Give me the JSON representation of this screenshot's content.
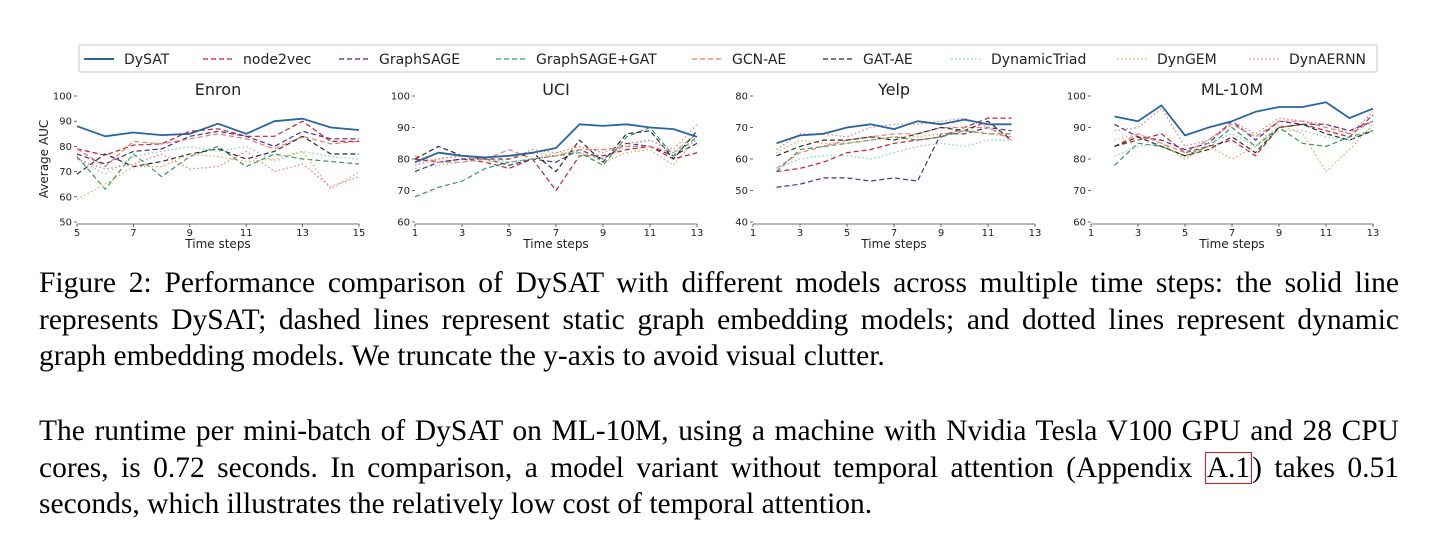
{
  "legend": [
    {
      "name": "DySAT",
      "color": "#2466a6",
      "style": "solid"
    },
    {
      "name": "node2vec",
      "color": "#c81e2e",
      "style": "dashed"
    },
    {
      "name": "GraphSAGE",
      "color": "#4b2a8c",
      "style": "dashed"
    },
    {
      "name": "GraphSAGE+GAT",
      "color": "#2e9a5a",
      "style": "dashed"
    },
    {
      "name": "GCN-AE",
      "color": "#f07a6a",
      "style": "dashed"
    },
    {
      "name": "GAT-AE",
      "color": "#2b2b2b",
      "style": "dashed"
    },
    {
      "name": "DynamicTriad",
      "color": "#7fd1b0",
      "style": "dotted"
    },
    {
      "name": "DynGEM",
      "color": "#f5a14a",
      "style": "dotted"
    },
    {
      "name": "DynAERNN",
      "color": "#e87a7a",
      "style": "dotted"
    }
  ],
  "chart_data": [
    {
      "type": "line",
      "title": "Enron",
      "xlabel": "Time steps",
      "ylabel": "Average AUC",
      "xlim": [
        5,
        15
      ],
      "ylim": [
        50,
        100
      ],
      "xticks": [
        "5",
        "7",
        "9",
        "11",
        "13",
        "15"
      ],
      "yticks": [
        "50",
        "60",
        "70",
        "80",
        "90",
        "100"
      ],
      "x": [
        5,
        6,
        7,
        8,
        9,
        10,
        11,
        12,
        13,
        14,
        15
      ],
      "series": [
        {
          "name": "DySAT",
          "values": [
            88,
            84,
            85.5,
            84.5,
            85,
            89,
            85,
            90,
            91,
            87.5,
            86.5
          ]
        },
        {
          "name": "node2vec",
          "values": [
            79,
            76.5,
            80.5,
            81,
            86,
            87,
            84,
            84,
            90,
            82,
            82
          ]
        },
        {
          "name": "GraphSAGE",
          "values": [
            77,
            73,
            78,
            79,
            84,
            86,
            84,
            80,
            86,
            83,
            83
          ]
        },
        {
          "name": "GraphSAGE+GAT",
          "values": [
            76,
            63,
            77,
            68,
            76,
            80,
            72,
            77,
            75,
            74,
            73
          ]
        },
        {
          "name": "GCN-AE",
          "values": [
            79,
            72,
            82,
            81,
            83,
            85,
            83,
            79,
            84,
            81,
            82
          ]
        },
        {
          "name": "GAT-AE",
          "values": [
            69,
            77,
            72,
            74,
            77,
            79,
            75,
            78,
            84,
            77,
            77
          ]
        },
        {
          "name": "DynamicTriad",
          "values": [
            75,
            69,
            76,
            78,
            80,
            78,
            80,
            74,
            78,
            76,
            75
          ]
        },
        {
          "name": "DynGEM",
          "values": [
            59,
            65,
            72,
            72,
            77,
            76,
            74,
            75,
            78,
            63,
            70
          ]
        },
        {
          "name": "DynAERNN",
          "values": [
            75,
            71,
            73,
            77,
            71,
            72,
            78,
            70,
            73,
            64,
            68
          ]
        }
      ]
    },
    {
      "type": "line",
      "title": "UCI",
      "xlabel": "Time steps",
      "ylabel": "",
      "xlim": [
        1,
        13
      ],
      "ylim": [
        60,
        100
      ],
      "xticks": [
        "1",
        "3",
        "5",
        "7",
        "9",
        "11",
        "13"
      ],
      "yticks": [
        "60",
        "70",
        "80",
        "90",
        "100"
      ],
      "x": [
        1,
        2,
        3,
        4,
        5,
        6,
        7,
        8,
        9,
        10,
        11,
        12,
        13
      ],
      "series": [
        {
          "name": "DySAT",
          "values": [
            79,
            82,
            81,
            80.5,
            81,
            82,
            83.5,
            91,
            90.5,
            91,
            90,
            89.5,
            87
          ]
        },
        {
          "name": "node2vec",
          "values": [
            80,
            79,
            80,
            79,
            77,
            80,
            70,
            81,
            81,
            83,
            84,
            80,
            82
          ]
        },
        {
          "name": "GraphSAGE",
          "values": [
            76,
            79,
            80,
            80,
            78,
            80,
            79,
            83,
            80,
            85,
            84,
            81,
            85
          ]
        },
        {
          "name": "GraphSAGE+GAT",
          "values": [
            68,
            71,
            73,
            77,
            79,
            80,
            81,
            82,
            78,
            87,
            90,
            81,
            87
          ]
        },
        {
          "name": "GCN-AE",
          "values": [
            81,
            79,
            79,
            80,
            83,
            80,
            81,
            83,
            83,
            84,
            84,
            82,
            88
          ]
        },
        {
          "name": "GAT-AE",
          "values": [
            80,
            84,
            81,
            80,
            80,
            82,
            76,
            86,
            79,
            88,
            89,
            80,
            89
          ]
        },
        {
          "name": "DynamicTriad",
          "values": [
            77,
            78,
            79,
            80,
            79,
            80,
            82,
            82,
            80,
            84,
            86,
            82,
            86
          ]
        },
        {
          "name": "DynGEM",
          "values": [
            79,
            80,
            81,
            79,
            80,
            82,
            81,
            83,
            79,
            82,
            83,
            78,
            87
          ]
        },
        {
          "name": "DynAERNN",
          "values": [
            78,
            80,
            81,
            80,
            80,
            83,
            82,
            84,
            82,
            85,
            86,
            83,
            91
          ]
        }
      ]
    },
    {
      "type": "line",
      "title": "Yelp",
      "xlabel": "Time steps",
      "ylabel": "",
      "xlim": [
        1,
        13
      ],
      "ylim": [
        40,
        80
      ],
      "xticks": [
        "1",
        "3",
        "5",
        "7",
        "9",
        "11",
        "13"
      ],
      "yticks": [
        "40",
        "50",
        "60",
        "70",
        "80"
      ],
      "x": [
        2,
        3,
        4,
        5,
        6,
        7,
        8,
        9,
        10,
        11,
        12
      ],
      "series": [
        {
          "name": "DySAT",
          "values": [
            65,
            67.5,
            68,
            70,
            71,
            69.5,
            72,
            71,
            72.5,
            71,
            71
          ]
        },
        {
          "name": "node2vec",
          "values": [
            56,
            57,
            59,
            62,
            63,
            65,
            66,
            67,
            70,
            73,
            73
          ]
        },
        {
          "name": "GraphSAGE",
          "values": [
            51,
            52,
            54,
            54,
            53,
            54,
            53,
            68,
            68,
            70,
            69
          ]
        },
        {
          "name": "GraphSAGE+GAT",
          "values": [
            56,
            63,
            64,
            65,
            66,
            67,
            66,
            67,
            69,
            68,
            68
          ]
        },
        {
          "name": "GCN-AE",
          "values": [
            57,
            62,
            64,
            66,
            67,
            68,
            68,
            70,
            70,
            70,
            66
          ]
        },
        {
          "name": "GAT-AE",
          "values": [
            61,
            64,
            66,
            66,
            67,
            66,
            68,
            70,
            69,
            72,
            66
          ]
        },
        {
          "name": "DynamicTriad",
          "values": [
            57,
            60,
            61,
            61,
            60,
            62,
            64,
            65,
            64,
            66,
            66
          ]
        },
        {
          "name": "DynGEM",
          "values": [
            62,
            66,
            65,
            65,
            66,
            67,
            67,
            68,
            69,
            68,
            67
          ]
        },
        {
          "name": "DynAERNN",
          "values": [
            63,
            68,
            68,
            67,
            70,
            71,
            71,
            72,
            73,
            70,
            67
          ]
        }
      ]
    },
    {
      "type": "line",
      "title": "ML-10M",
      "xlabel": "Time steps",
      "ylabel": "",
      "xlim": [
        1,
        13
      ],
      "ylim": [
        60,
        100
      ],
      "xticks": [
        "1",
        "3",
        "5",
        "7",
        "9",
        "11",
        "13"
      ],
      "yticks": [
        "60",
        "70",
        "80",
        "90",
        "100"
      ],
      "x": [
        2,
        3,
        4,
        5,
        6,
        7,
        8,
        9,
        10,
        11,
        12,
        13
      ],
      "series": [
        {
          "name": "DySAT",
          "values": [
            93.5,
            92,
            97,
            87.5,
            90,
            92,
            95,
            96.5,
            96.5,
            98,
            93,
            96
          ]
        },
        {
          "name": "node2vec",
          "values": [
            84,
            86,
            88,
            82,
            84,
            86,
            81,
            90,
            91,
            89,
            87,
            94
          ]
        },
        {
          "name": "GraphSAGE",
          "values": [
            91,
            87,
            86,
            83,
            85,
            92,
            86,
            92,
            91,
            91,
            89,
            92
          ]
        },
        {
          "name": "GraphSAGE+GAT",
          "values": [
            78,
            85,
            84,
            81,
            84,
            90,
            84,
            90,
            85,
            84,
            87,
            89
          ]
        },
        {
          "name": "GCN-AE",
          "values": [
            84,
            88,
            85,
            82,
            86,
            91,
            87,
            92,
            92,
            90,
            88,
            92
          ]
        },
        {
          "name": "GAT-AE",
          "values": [
            84,
            87,
            84,
            81,
            83,
            87,
            82,
            90,
            91,
            88,
            86,
            89
          ]
        },
        {
          "name": "DynamicTriad",
          "values": [
            81,
            84,
            85,
            80,
            85,
            88,
            84,
            89,
            89,
            87,
            86,
            90
          ]
        },
        {
          "name": "DynGEM",
          "values": [
            86,
            88,
            85,
            80,
            84,
            80,
            84,
            91,
            88,
            76,
            83,
            91
          ]
        },
        {
          "name": "DynAERNN",
          "values": [
            89,
            90,
            96,
            84,
            86,
            92,
            88,
            93,
            92,
            91,
            88,
            95
          ]
        }
      ]
    }
  ],
  "caption": "Figure 2: Performance comparison of DySAT with different models across multiple time steps: the solid line represents DySAT; dashed lines represent static graph embedding models; and dotted lines represent dynamic graph embedding models. We truncate the y-axis to avoid visual clutter.",
  "paragraph": {
    "before": "The runtime per mini-batch of DySAT on ML-10M, using a machine with Nvidia Tesla V100 GPU and 28 CPU cores, is 0.72 seconds.  In comparison, a model variant without temporal attention (Appendix ",
    "ref": "A.1",
    "after": ") takes 0.51 seconds, which illustrates the relatively low cost of temporal attention."
  }
}
